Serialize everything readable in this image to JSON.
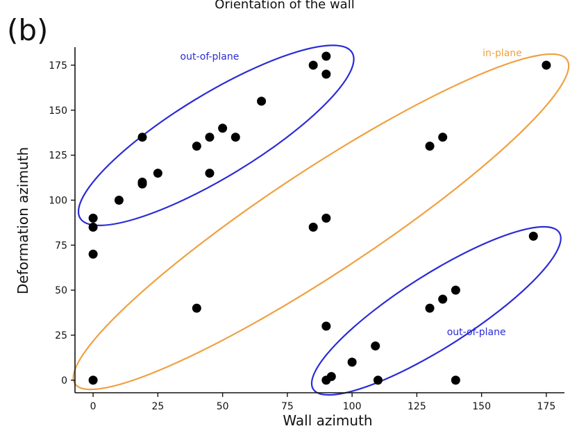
{
  "top_text": "Orientation of the wall",
  "panel_label": "(b)",
  "colors": {
    "out_of_plane": "#2b2bd6",
    "in_plane": "#f0a040",
    "points": "#000000",
    "axis": "#111111"
  },
  "chart_data": {
    "type": "scatter",
    "title": "",
    "xlabel": "Wall azimuth",
    "ylabel": "Deformation azimuth",
    "xlim": [
      -7,
      182
    ],
    "ylim": [
      -7,
      185
    ],
    "xticks": [
      0,
      25,
      50,
      75,
      100,
      125,
      150,
      175
    ],
    "yticks": [
      0,
      25,
      50,
      75,
      100,
      125,
      150,
      175
    ],
    "grid": false,
    "points": [
      {
        "x": 0,
        "y": 0
      },
      {
        "x": 0,
        "y": 70
      },
      {
        "x": 0,
        "y": 85
      },
      {
        "x": 0,
        "y": 90
      },
      {
        "x": 10,
        "y": 100
      },
      {
        "x": 19,
        "y": 110
      },
      {
        "x": 19,
        "y": 109
      },
      {
        "x": 19,
        "y": 135
      },
      {
        "x": 25,
        "y": 115
      },
      {
        "x": 40,
        "y": 130
      },
      {
        "x": 40,
        "y": 40
      },
      {
        "x": 45,
        "y": 135
      },
      {
        "x": 45,
        "y": 115
      },
      {
        "x": 50,
        "y": 140
      },
      {
        "x": 55,
        "y": 135
      },
      {
        "x": 65,
        "y": 155
      },
      {
        "x": 85,
        "y": 175
      },
      {
        "x": 90,
        "y": 180
      },
      {
        "x": 90,
        "y": 170
      },
      {
        "x": 85,
        "y": 85
      },
      {
        "x": 90,
        "y": 90
      },
      {
        "x": 90,
        "y": 30
      },
      {
        "x": 90,
        "y": 0
      },
      {
        "x": 92,
        "y": 2
      },
      {
        "x": 100,
        "y": 10
      },
      {
        "x": 109,
        "y": 19
      },
      {
        "x": 110,
        "y": 0
      },
      {
        "x": 130,
        "y": 130
      },
      {
        "x": 135,
        "y": 135
      },
      {
        "x": 130,
        "y": 40
      },
      {
        "x": 135,
        "y": 45
      },
      {
        "x": 140,
        "y": 50
      },
      {
        "x": 140,
        "y": 0
      },
      {
        "x": 170,
        "y": 80
      },
      {
        "x": 175,
        "y": 175
      }
    ],
    "annotations": [
      {
        "text": "out-of-plane",
        "color_key": "out_of_plane",
        "x": 45,
        "y": 180
      },
      {
        "text": "in-plane",
        "color_key": "in_plane",
        "x": 158,
        "y": 182
      },
      {
        "text": "out-of-plane",
        "color_key": "out_of_plane",
        "x": 148,
        "y": 27
      }
    ],
    "ellipses": [
      {
        "label": "out-of-plane",
        "color_key": "out_of_plane",
        "from": [
          -5,
          90
        ],
        "to": [
          100,
          182
        ],
        "minor_half_width": 16
      },
      {
        "label": "in-plane",
        "color_key": "in_plane",
        "from": [
          -7,
          -2
        ],
        "to": [
          183,
          178
        ],
        "minor_half_width": 20
      },
      {
        "label": "out-of-plane",
        "color_key": "out_of_plane",
        "from": [
          85,
          -5
        ],
        "to": [
          180,
          82
        ],
        "minor_half_width": 14
      }
    ]
  }
}
